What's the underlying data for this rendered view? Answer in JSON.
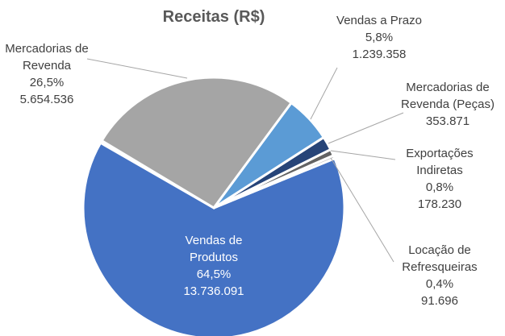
{
  "chart_data": {
    "type": "pie",
    "title": "Receitas (R$)",
    "categories": [
      "Mercadorias de Revenda",
      "Vendas a Prazo",
      "Mercadorias de Revenda (Peças)",
      "Exportações Indiretas",
      "Locação de Refresqueiras",
      "Vendas de Produtos"
    ],
    "values": [
      26.5,
      5.8,
      1.7,
      0.8,
      0.4,
      64.5
    ],
    "value_labels": [
      "26,5%",
      "5,8%",
      null,
      "0,8%",
      "0,4%",
      "64,5%"
    ],
    "amounts": [
      5654536,
      1239358,
      353871,
      178230,
      91696,
      13736091
    ],
    "amount_labels": [
      "5.654.536",
      "1.239.358",
      "353.871",
      "178.230",
      "91.696",
      "13.736.091"
    ],
    "colors": [
      "#a5a5a5",
      "#5b9bd5",
      "#264478",
      "#636363",
      "#c9c9c9",
      "#4472c4"
    ]
  }
}
